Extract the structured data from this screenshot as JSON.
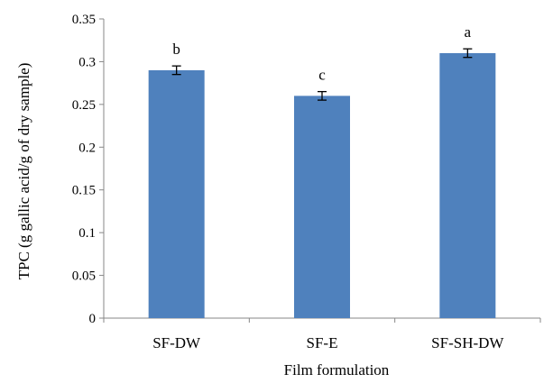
{
  "chart_data": {
    "type": "bar",
    "categories": [
      "SF-DW",
      "SF-E",
      "SF-SH-DW"
    ],
    "values": [
      0.29,
      0.26,
      0.31
    ],
    "errors": [
      0.005,
      0.005,
      0.005
    ],
    "annotations": [
      "b",
      "c",
      "a"
    ],
    "xlabel": "Film formulation",
    "ylabel": "TPC (g gallic acid/g of dry sample)",
    "ylim": [
      0,
      0.35
    ],
    "yticks": [
      0,
      0.05,
      0.1,
      0.15,
      0.2,
      0.25,
      0.3,
      0.35
    ],
    "ytick_labels": [
      "0",
      "0.05",
      "0.1",
      "0.15",
      "0.2",
      "0.25",
      "0.3",
      "0.35"
    ],
    "grid": false,
    "legend": "none",
    "bar_color": "#4F81BD"
  }
}
